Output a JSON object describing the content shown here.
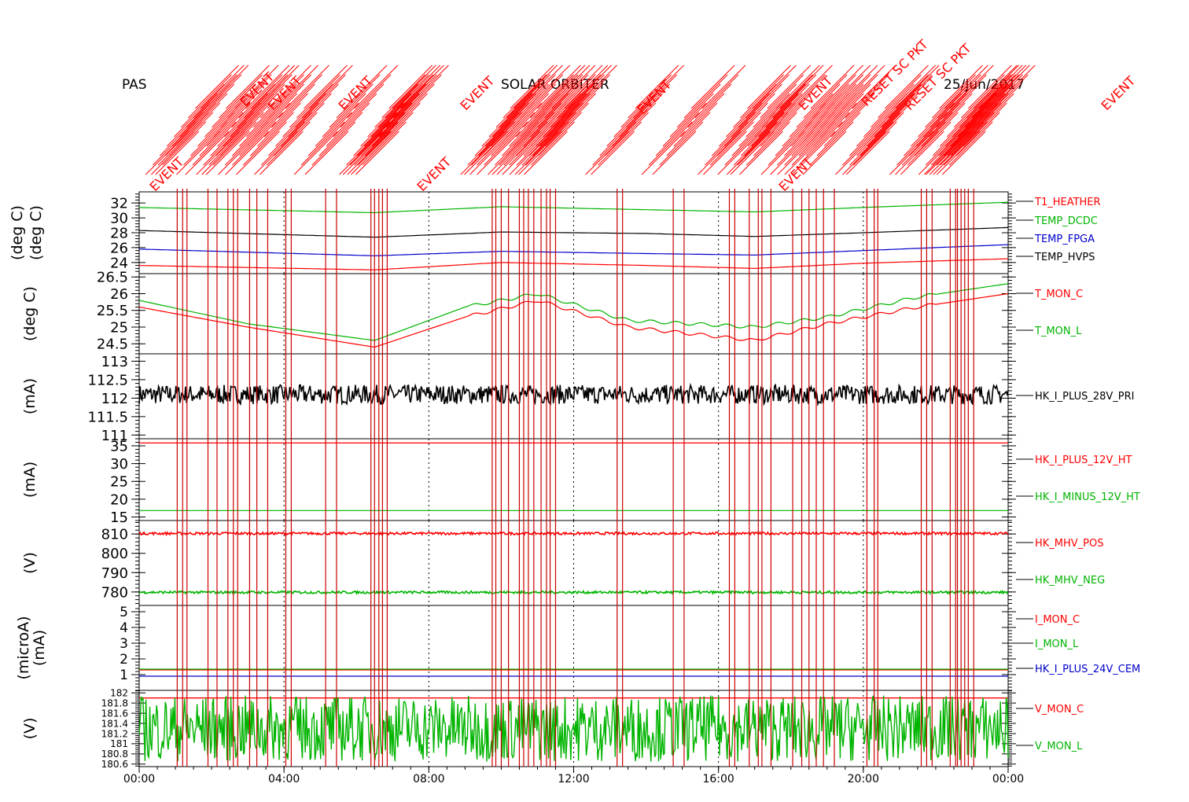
{
  "header": {
    "instrument": "PAS",
    "mission": "SOLAR ORBITER",
    "date": "25/Jun/2017",
    "event_labels": [
      "EVENT",
      "EVENT",
      "EVENT",
      "EVENT",
      "EVENT",
      "EVENT",
      "EVENT",
      "EVENT",
      "EVENT",
      "EVENT",
      "RESET SC PKT",
      "RESET SC PKT"
    ]
  },
  "colors": {
    "red": "#ff0000",
    "green": "#00b400",
    "blue": "#0000cc",
    "black": "#000000",
    "event_line": "#cc0000"
  },
  "chart_data": [
    {
      "type": "line",
      "ylabel": "(deg C)",
      "yticks": [
        24,
        26,
        28,
        30,
        32
      ],
      "ylim": [
        22.5,
        33.5
      ],
      "series": [
        {
          "name": "T1_HEATHER",
          "color": "#ff0000",
          "x": [
            0,
            6.5,
            10,
            14,
            17,
            20,
            24
          ],
          "y": [
            23.6,
            23.0,
            24.0,
            23.6,
            23.2,
            23.9,
            24.5
          ]
        },
        {
          "name": "TEMP_DCDC",
          "color": "#00b400",
          "x": [
            0,
            6.5,
            10,
            14,
            17,
            20,
            24
          ],
          "y": [
            31.4,
            30.7,
            31.5,
            31.1,
            30.8,
            31.4,
            32.1
          ]
        },
        {
          "name": "TEMP_FPGA",
          "color": "#0000cc",
          "x": [
            0,
            6.5,
            10,
            14,
            17,
            20,
            24
          ],
          "y": [
            25.8,
            24.9,
            25.5,
            25.2,
            25.0,
            25.6,
            26.4
          ]
        },
        {
          "name": "TEMP_HVPS",
          "color": "#000000",
          "x": [
            0,
            6.5,
            10,
            14,
            17,
            20,
            24
          ],
          "y": [
            28.3,
            27.4,
            28.1,
            27.9,
            27.5,
            28.0,
            28.7
          ]
        }
      ]
    },
    {
      "type": "line",
      "ylabel": "(deg C)",
      "yticks": [
        24.5,
        25.0,
        25.5,
        26.0,
        26.5
      ],
      "ylim": [
        24.2,
        26.6
      ],
      "series": [
        {
          "name": "T_MON_C",
          "color": "#ff0000",
          "x": [
            0,
            3,
            6.5,
            9,
            11,
            13.5,
            17,
            19,
            21.5,
            24
          ],
          "y": [
            25.6,
            25.0,
            24.4,
            25.3,
            25.8,
            25.0,
            24.6,
            25.1,
            25.6,
            26.0
          ]
        },
        {
          "name": "T_MON_L",
          "color": "#00b400",
          "x": [
            0,
            3,
            6.5,
            9,
            11,
            13.5,
            17,
            19,
            21.5,
            24
          ],
          "y": [
            25.8,
            25.1,
            24.6,
            25.6,
            26.0,
            25.2,
            25.0,
            25.3,
            25.9,
            26.3
          ]
        }
      ]
    },
    {
      "type": "line",
      "ylabel": "(mA)",
      "yticks": [
        111.0,
        111.5,
        112.0,
        112.5,
        113.0
      ],
      "ylim": [
        110.9,
        113.2
      ],
      "series": [
        {
          "name": "HK_I_PLUS_28V_PRI",
          "color": "#000000",
          "mean": 112.1,
          "spread": 0.4
        }
      ]
    },
    {
      "type": "line",
      "ylabel": "(mA)",
      "yticks": [
        15,
        20,
        25,
        30,
        35
      ],
      "ylim": [
        14,
        37
      ],
      "series": [
        {
          "name": "HK_I_PLUS_12V_HT",
          "color": "#ff0000",
          "x": [
            0,
            24
          ],
          "y": [
            35.8,
            35.8
          ]
        },
        {
          "name": "HK_I_MINUS_12V_HT",
          "color": "#00b400",
          "x": [
            0,
            24
          ],
          "y": [
            16.8,
            16.8
          ]
        }
      ]
    },
    {
      "type": "line",
      "ylabel": "(V)",
      "yticks": [
        780,
        790,
        800,
        810
      ],
      "ylim": [
        773,
        817
      ],
      "series": [
        {
          "name": "HK_MHV_POS",
          "color": "#ff0000",
          "mean": 810.3,
          "spread": 1.0
        },
        {
          "name": "HK_MHV_NEG",
          "color": "#00b400",
          "mean": 779.8,
          "spread": 1.0
        }
      ]
    },
    {
      "type": "line",
      "ylabel": "(microA) (mA)",
      "yticks": [
        1,
        2,
        3,
        4,
        5
      ],
      "ylim": [
        0,
        5.4
      ],
      "series": [
        {
          "name": "I_MON_C",
          "color": "#ff0000",
          "x": [
            0,
            24
          ],
          "y": [
            1.3,
            1.3
          ]
        },
        {
          "name": "I_MON_L",
          "color": "#00b400",
          "x": [
            0,
            24
          ],
          "y": [
            1.35,
            1.35
          ]
        },
        {
          "name": "HK_I_PLUS_24V_CEM",
          "color": "#0000cc",
          "x": [
            0,
            24
          ],
          "y": [
            0.9,
            0.9
          ]
        }
      ]
    },
    {
      "type": "line",
      "ylabel": "(V)",
      "yticks": [
        180.6,
        180.8,
        181.0,
        181.2,
        181.4,
        181.6,
        181.8,
        182.0
      ],
      "ylim": [
        180.55,
        182.05
      ],
      "series": [
        {
          "name": "V_MON_C",
          "color": "#ff0000",
          "mean": 181.9,
          "spread": 0
        },
        {
          "name": "V_MON_L",
          "color": "#00b400",
          "mean": 181.3,
          "spread": 1.3
        }
      ]
    }
  ],
  "xaxis": {
    "xlim": [
      0,
      24
    ],
    "ticks": [
      0,
      4,
      8,
      12,
      16,
      20,
      24
    ],
    "tick_labels": [
      "00:00",
      "04:00",
      "08:00",
      "12:00",
      "16:00",
      "20:00",
      "00:00"
    ]
  },
  "event_times": [
    1.05,
    1.2,
    1.32,
    1.9,
    2.15,
    2.45,
    2.6,
    2.72,
    3.05,
    3.25,
    3.55,
    4.05,
    4.2,
    5.15,
    5.45,
    6.4,
    6.5,
    6.62,
    6.72,
    6.85,
    9.75,
    9.85,
    10.0,
    10.2,
    10.5,
    10.62,
    10.75,
    10.9,
    11.1,
    11.25,
    11.35,
    11.5,
    13.2,
    13.35,
    14.75,
    15.05,
    16.3,
    16.45,
    16.85,
    17.1,
    17.2,
    17.45,
    18.05,
    18.3,
    18.5,
    18.7,
    18.9,
    19.2,
    20.1,
    20.3,
    20.4,
    21.6,
    21.75,
    21.9,
    22.4,
    22.55,
    22.6,
    22.7,
    22.8,
    22.9,
    23.05
  ]
}
